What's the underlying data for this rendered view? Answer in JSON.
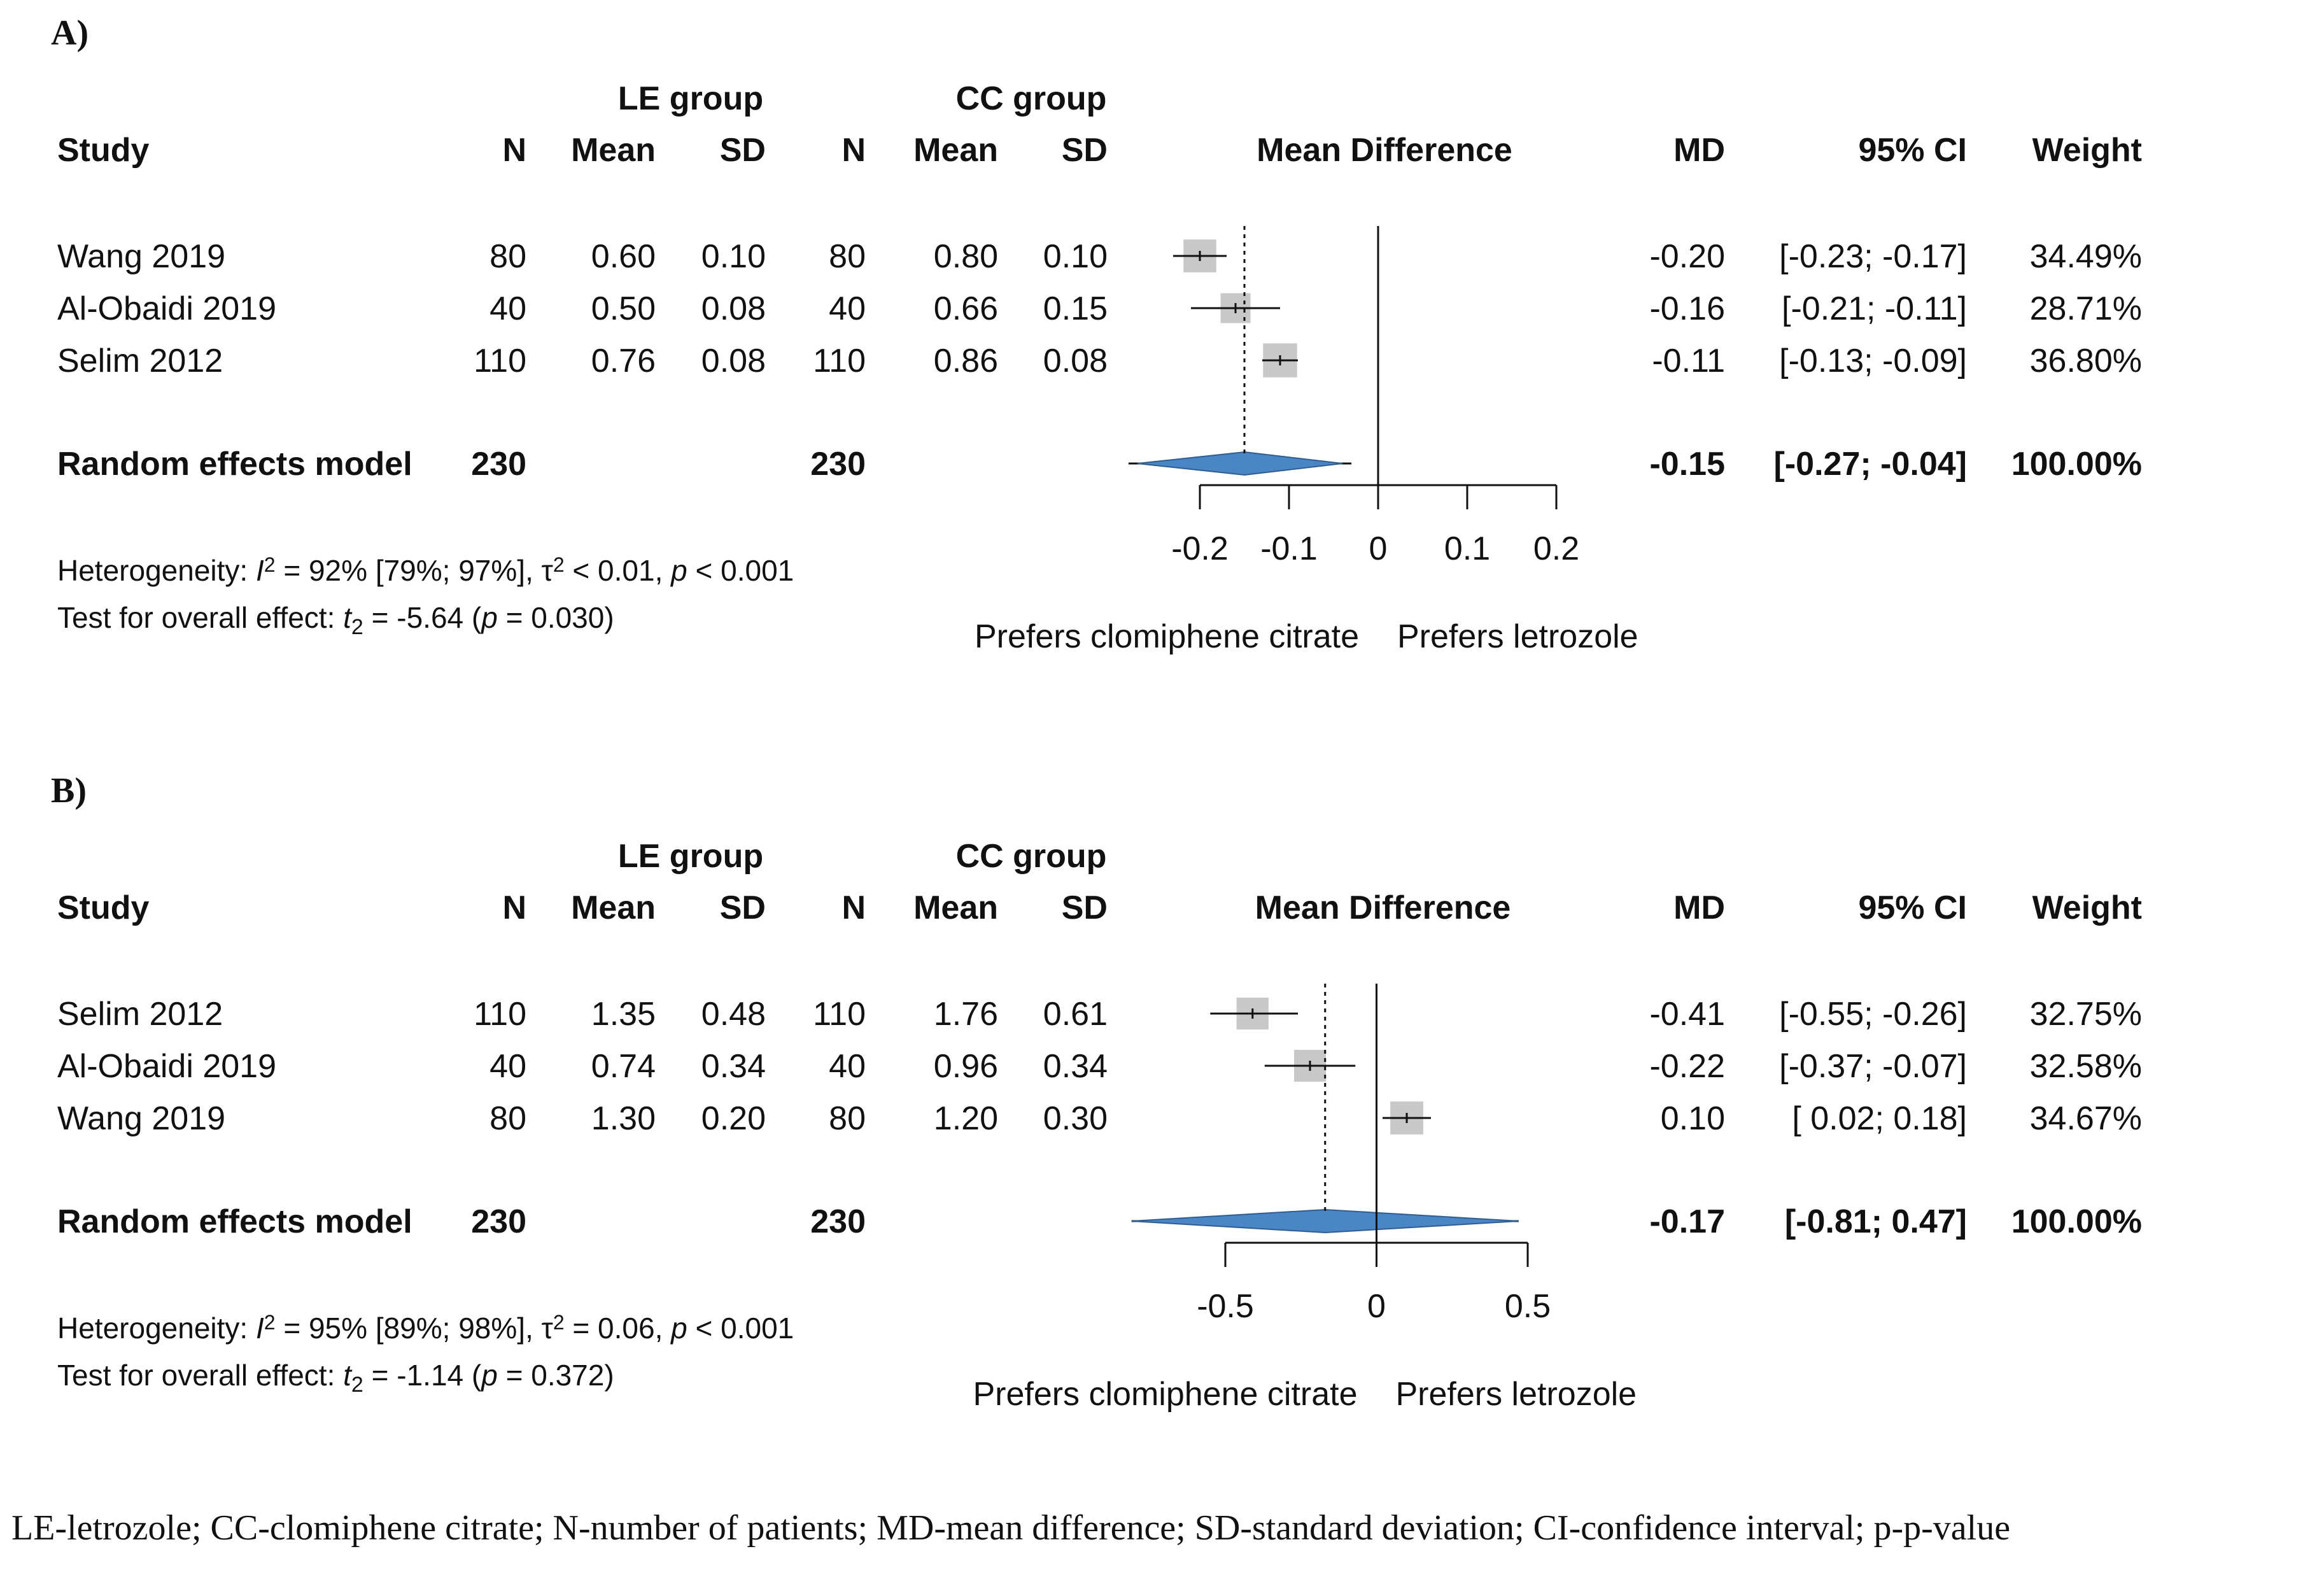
{
  "chart_data": [
    {
      "type": "forest",
      "panel_label": "A)",
      "group_headers": [
        "LE group",
        "CC group"
      ],
      "columns": [
        "Study",
        "N",
        "Mean",
        "SD",
        "N",
        "Mean",
        "SD",
        "Mean Difference",
        "MD",
        "95% CI",
        "Weight"
      ],
      "studies": [
        {
          "study": "Wang 2019",
          "le_n": "80",
          "le_mean": "0.60",
          "le_sd": "0.10",
          "cc_n": "80",
          "cc_mean": "0.80",
          "cc_sd": "0.10",
          "md": -0.2,
          "lo": -0.23,
          "hi": -0.17,
          "md_text": "-0.20",
          "ci_text": "[-0.23; -0.17]",
          "weight": "34.49%"
        },
        {
          "study": "Al-Obaidi 2019",
          "le_n": "40",
          "le_mean": "0.50",
          "le_sd": "0.08",
          "cc_n": "40",
          "cc_mean": "0.66",
          "cc_sd": "0.15",
          "md": -0.16,
          "lo": -0.21,
          "hi": -0.11,
          "md_text": "-0.16",
          "ci_text": "[-0.21; -0.11]",
          "weight": "28.71%"
        },
        {
          "study": "Selim 2012",
          "le_n": "110",
          "le_mean": "0.76",
          "le_sd": "0.08",
          "cc_n": "110",
          "cc_mean": "0.86",
          "cc_sd": "0.08",
          "md": -0.11,
          "lo": -0.13,
          "hi": -0.09,
          "md_text": "-0.11",
          "ci_text": "[-0.13; -0.09]",
          "weight": "36.80%"
        }
      ],
      "summary": {
        "label": "Random effects model",
        "le_n": "230",
        "cc_n": "230",
        "md": -0.15,
        "lo": -0.27,
        "hi": -0.04,
        "pred_lo": -0.28,
        "pred_hi": -0.03,
        "md_text": "-0.15",
        "ci_text": "[-0.27; -0.04]",
        "weight": "100.00%"
      },
      "heterogeneity": {
        "i2": "92%",
        "i2_ci": "[79%; 97%]",
        "tau2": "< 0.01",
        "p": "< 0.001"
      },
      "overall": {
        "t": "-5.64",
        "p": "= 0.030"
      },
      "xlim": [
        -0.2,
        0.2
      ],
      "xticks": [
        -0.2,
        -0.1,
        0,
        0.1,
        0.2
      ],
      "xtick_labels": [
        "-0.2",
        "-0.1",
        "0",
        "0.1",
        "0.2"
      ],
      "left_label": "Prefers clomiphene citrate",
      "right_label": "Prefers letrozole"
    },
    {
      "type": "forest",
      "panel_label": "B)",
      "group_headers": [
        "LE group",
        "CC group"
      ],
      "columns": [
        "Study",
        "N",
        "Mean",
        "SD",
        "N",
        "Mean",
        "SD",
        "Mean Difference",
        "MD",
        "95% CI",
        "Weight"
      ],
      "studies": [
        {
          "study": "Selim 2012",
          "le_n": "110",
          "le_mean": "1.35",
          "le_sd": "0.48",
          "cc_n": "110",
          "cc_mean": "1.76",
          "cc_sd": "0.61",
          "md": -0.41,
          "lo": -0.55,
          "hi": -0.26,
          "md_text": "-0.41",
          "ci_text": "[-0.55; -0.26]",
          "weight": "32.75%"
        },
        {
          "study": "Al-Obaidi 2019",
          "le_n": "40",
          "le_mean": "0.74",
          "le_sd": "0.34",
          "cc_n": "40",
          "cc_mean": "0.96",
          "cc_sd": "0.34",
          "md": -0.22,
          "lo": -0.37,
          "hi": -0.07,
          "md_text": "-0.22",
          "ci_text": "[-0.37; -0.07]",
          "weight": "32.58%"
        },
        {
          "study": "Wang 2019",
          "le_n": "80",
          "le_mean": "1.30",
          "le_sd": "0.20",
          "cc_n": "80",
          "cc_mean": "1.20",
          "cc_sd": "0.30",
          "md": 0.1,
          "lo": 0.02,
          "hi": 0.18,
          "md_text": "0.10",
          "ci_text": "[ 0.02;  0.18]",
          "weight": "34.67%"
        }
      ],
      "summary": {
        "label": "Random effects model",
        "le_n": "230",
        "cc_n": "230",
        "md": -0.17,
        "lo": -0.81,
        "hi": 0.47,
        "pred_lo": -0.81,
        "pred_hi": 0.47,
        "md_text": "-0.17",
        "ci_text": "[-0.81; 0.47]",
        "weight": "100.00%"
      },
      "heterogeneity": {
        "i2": "95%",
        "i2_ci": "[89%; 98%]",
        "tau2": "= 0.06",
        "p": "< 0.001"
      },
      "overall": {
        "t": "-1.14",
        "p": "= 0.372"
      },
      "xlim": [
        -0.5,
        0.5
      ],
      "xticks": [
        -0.5,
        0,
        0.5
      ],
      "xtick_labels": [
        "-0.5",
        "0",
        "0.5"
      ],
      "left_label": "Prefers clomiphene citrate",
      "right_label": "Prefers letrozole"
    }
  ],
  "colors": {
    "box": "#c8c8c8",
    "diamond": "#4a86c5",
    "line": "#111111",
    "text": "#111111"
  },
  "footnote": "LE-letrozole; CC-clomiphene citrate; N-number of patients; MD-mean difference; SD-standard deviation; CI-confidence interval; p-p-value"
}
